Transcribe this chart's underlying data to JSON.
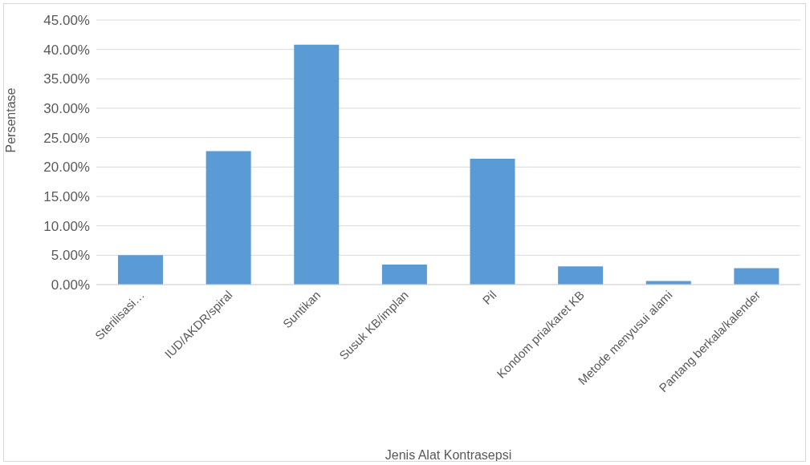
{
  "chart_data": {
    "type": "bar",
    "xlabel": "Jenis Alat Kontrasepsi",
    "ylabel": "Persentase",
    "categories": [
      "Sterilisasi…",
      "IUD/AKDR/spiral",
      "Suntikan",
      "Susuk KB/implan",
      "Pil",
      "Kondom pria/karet KB",
      "Metode menyusui alami",
      "Pantang berkala/kalender"
    ],
    "values": [
      5.0,
      22.7,
      40.8,
      3.4,
      21.4,
      3.1,
      0.6,
      2.8
    ],
    "color": "#5b9bd5",
    "ylim": [
      0,
      45
    ],
    "yticks": [
      {
        "value": 0,
        "label": "0.00%"
      },
      {
        "value": 5,
        "label": "5.00%"
      },
      {
        "value": 10,
        "label": "10.00%"
      },
      {
        "value": 15,
        "label": "15.00%"
      },
      {
        "value": 20,
        "label": "20.00%"
      },
      {
        "value": 25,
        "label": "25.00%"
      },
      {
        "value": 30,
        "label": "30.00%"
      },
      {
        "value": 35,
        "label": "35.00%"
      },
      {
        "value": 40,
        "label": "40.00%"
      },
      {
        "value": 45,
        "label": "45.00%"
      }
    ],
    "grid": "y"
  }
}
